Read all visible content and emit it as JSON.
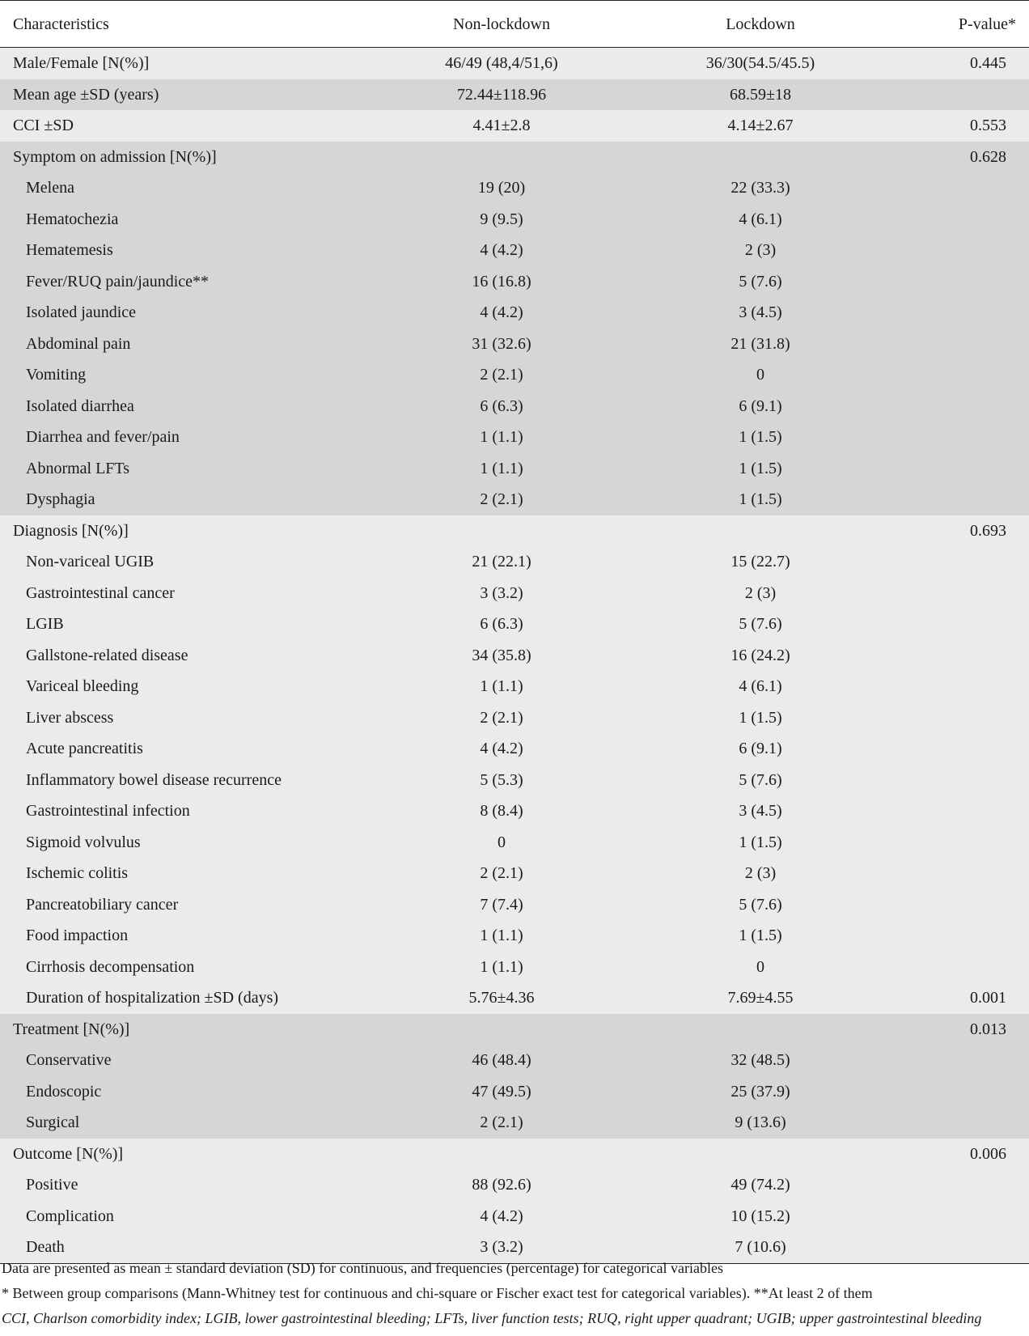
{
  "header": [
    "Characteristics",
    "Non-lockdown",
    "Lockdown",
    "P-value*"
  ],
  "rows": [
    {
      "label": "Male/Female [N(%)]",
      "nonlockdown": "46/49 (48,4/51,6)",
      "lockdown": "36/30(54.5/45.5)",
      "p": "0.445",
      "shade": "light",
      "indent": false
    },
    {
      "label": "Mean age ±SD (years)",
      "nonlockdown": "72.44±118.96",
      "lockdown": "68.59±18",
      "p": "",
      "shade": "dark",
      "indent": false
    },
    {
      "label": "CCI ±SD",
      "nonlockdown": "4.41±2.8",
      "lockdown": "4.14±2.67",
      "p": "0.553",
      "shade": "light",
      "indent": false
    },
    {
      "label": "Symptom on admission [N(%)]",
      "nonlockdown": "",
      "lockdown": "",
      "p": "0.628",
      "shade": "dark",
      "indent": false
    },
    {
      "label": "Melena",
      "nonlockdown": "19 (20)",
      "lockdown": "22 (33.3)",
      "p": "",
      "shade": "dark",
      "indent": true
    },
    {
      "label": "Hematochezia",
      "nonlockdown": "9 (9.5)",
      "lockdown": "4 (6.1)",
      "p": "",
      "shade": "dark",
      "indent": true
    },
    {
      "label": "Hematemesis",
      "nonlockdown": "4 (4.2)",
      "lockdown": "2 (3)",
      "p": "",
      "shade": "dark",
      "indent": true
    },
    {
      "label": "Fever/RUQ pain/jaundice**",
      "nonlockdown": "16 (16.8)",
      "lockdown": "5 (7.6)",
      "p": "",
      "shade": "dark",
      "indent": true
    },
    {
      "label": "Isolated jaundice",
      "nonlockdown": "4 (4.2)",
      "lockdown": "3 (4.5)",
      "p": "",
      "shade": "dark",
      "indent": true
    },
    {
      "label": "Abdominal pain",
      "nonlockdown": "31 (32.6)",
      "lockdown": "21 (31.8)",
      "p": "",
      "shade": "dark",
      "indent": true
    },
    {
      "label": "Vomiting",
      "nonlockdown": "2 (2.1)",
      "lockdown": "0",
      "p": "",
      "shade": "dark",
      "indent": true
    },
    {
      "label": "Isolated diarrhea",
      "nonlockdown": "6 (6.3)",
      "lockdown": "6 (9.1)",
      "p": "",
      "shade": "dark",
      "indent": true
    },
    {
      "label": "Diarrhea and fever/pain",
      "nonlockdown": "1 (1.1)",
      "lockdown": "1 (1.5)",
      "p": "",
      "shade": "dark",
      "indent": true
    },
    {
      "label": "Abnormal LFTs",
      "nonlockdown": "1 (1.1)",
      "lockdown": "1 (1.5)",
      "p": "",
      "shade": "dark",
      "indent": true
    },
    {
      "label": "Dysphagia",
      "nonlockdown": "2 (2.1)",
      "lockdown": "1 (1.5)",
      "p": "",
      "shade": "dark",
      "indent": true
    },
    {
      "label": "Diagnosis [N(%)]",
      "nonlockdown": "",
      "lockdown": "",
      "p": "0.693",
      "shade": "light",
      "indent": false
    },
    {
      "label": "Non-variceal UGIB",
      "nonlockdown": "21 (22.1)",
      "lockdown": "15 (22.7)",
      "p": "",
      "shade": "light",
      "indent": true
    },
    {
      "label": "Gastrointestinal cancer",
      "nonlockdown": "3 (3.2)",
      "lockdown": "2 (3)",
      "p": "",
      "shade": "light",
      "indent": true
    },
    {
      "label": "LGIB",
      "nonlockdown": "6 (6.3)",
      "lockdown": "5 (7.6)",
      "p": "",
      "shade": "light",
      "indent": true
    },
    {
      "label": "Gallstone-related disease",
      "nonlockdown": "34 (35.8)",
      "lockdown": "16 (24.2)",
      "p": "",
      "shade": "light",
      "indent": true
    },
    {
      "label": "Variceal bleeding",
      "nonlockdown": "1 (1.1)",
      "lockdown": "4 (6.1)",
      "p": "",
      "shade": "light",
      "indent": true
    },
    {
      "label": "Liver abscess",
      "nonlockdown": "2 (2.1)",
      "lockdown": "1 (1.5)",
      "p": "",
      "shade": "light",
      "indent": true
    },
    {
      "label": "Acute pancreatitis",
      "nonlockdown": "4 (4.2)",
      "lockdown": "6 (9.1)",
      "p": "",
      "shade": "light",
      "indent": true
    },
    {
      "label": "Inflammatory bowel disease recurrence",
      "nonlockdown": "5 (5.3)",
      "lockdown": "5 (7.6)",
      "p": "",
      "shade": "light",
      "indent": true
    },
    {
      "label": "Gastrointestinal infection",
      "nonlockdown": "8 (8.4)",
      "lockdown": "3 (4.5)",
      "p": "",
      "shade": "light",
      "indent": true
    },
    {
      "label": "Sigmoid volvulus",
      "nonlockdown": "0",
      "lockdown": "1 (1.5)",
      "p": "",
      "shade": "light",
      "indent": true
    },
    {
      "label": "Ischemic colitis",
      "nonlockdown": "2 (2.1)",
      "lockdown": "2 (3)",
      "p": "",
      "shade": "light",
      "indent": true
    },
    {
      "label": "Pancreatobiliary cancer",
      "nonlockdown": "7 (7.4)",
      "lockdown": "5 (7.6)",
      "p": "",
      "shade": "light",
      "indent": true
    },
    {
      "label": "Food impaction",
      "nonlockdown": "1 (1.1)",
      "lockdown": "1 (1.5)",
      "p": "",
      "shade": "light",
      "indent": true
    },
    {
      "label": "Cirrhosis decompensation",
      "nonlockdown": "1 (1.1)",
      "lockdown": "0",
      "p": "",
      "shade": "light",
      "indent": true
    },
    {
      "label": "Duration of hospitalization ±SD (days)",
      "nonlockdown": "5.76±4.36",
      "lockdown": "7.69±4.55",
      "p": "0.001",
      "shade": "light",
      "indent": true
    },
    {
      "label": "Treatment [N(%)]",
      "nonlockdown": "",
      "lockdown": "",
      "p": "0.013",
      "shade": "dark",
      "indent": false
    },
    {
      "label": "Conservative",
      "nonlockdown": "46 (48.4)",
      "lockdown": "32 (48.5)",
      "p": "",
      "shade": "dark",
      "indent": true
    },
    {
      "label": "Endoscopic",
      "nonlockdown": "47 (49.5)",
      "lockdown": "25 (37.9)",
      "p": "",
      "shade": "dark",
      "indent": true
    },
    {
      "label": "Surgical",
      "nonlockdown": "2 (2.1)",
      "lockdown": "9 (13.6)",
      "p": "",
      "shade": "dark",
      "indent": true
    },
    {
      "label": "Outcome [N(%)]",
      "nonlockdown": "",
      "lockdown": "",
      "p": "0.006",
      "shade": "light",
      "indent": false
    },
    {
      "label": "Positive",
      "nonlockdown": "88 (92.6)",
      "lockdown": "49 (74.2)",
      "p": "",
      "shade": "light",
      "indent": true
    },
    {
      "label": "Complication",
      "nonlockdown": "4 (4.2)",
      "lockdown": "10 (15.2)",
      "p": "",
      "shade": "light",
      "indent": true
    },
    {
      "label": "Death",
      "nonlockdown": "3 (3.2)",
      "lockdown": "7 (10.6)",
      "p": "",
      "shade": "light",
      "indent": true
    }
  ],
  "footnotes": [
    "Data are presented as mean ± standard deviation (SD) for continuous, and frequencies (percentage) for categorical variables",
    "* Between group comparisons (Mann-Whitney test for continuous and chi-square or Fischer exact test for categorical variables). **At least 2 of them",
    "CCI, Charlson comorbidity index; LGIB, lower gastrointestinal bleeding; LFTs, liver function tests; RUQ, right upper quadrant; UGIB; upper gastrointestinal bleeding"
  ],
  "colors": {
    "light_row": "#ebebed",
    "dark_row": "#d6d6d9",
    "rule": "#222222"
  }
}
